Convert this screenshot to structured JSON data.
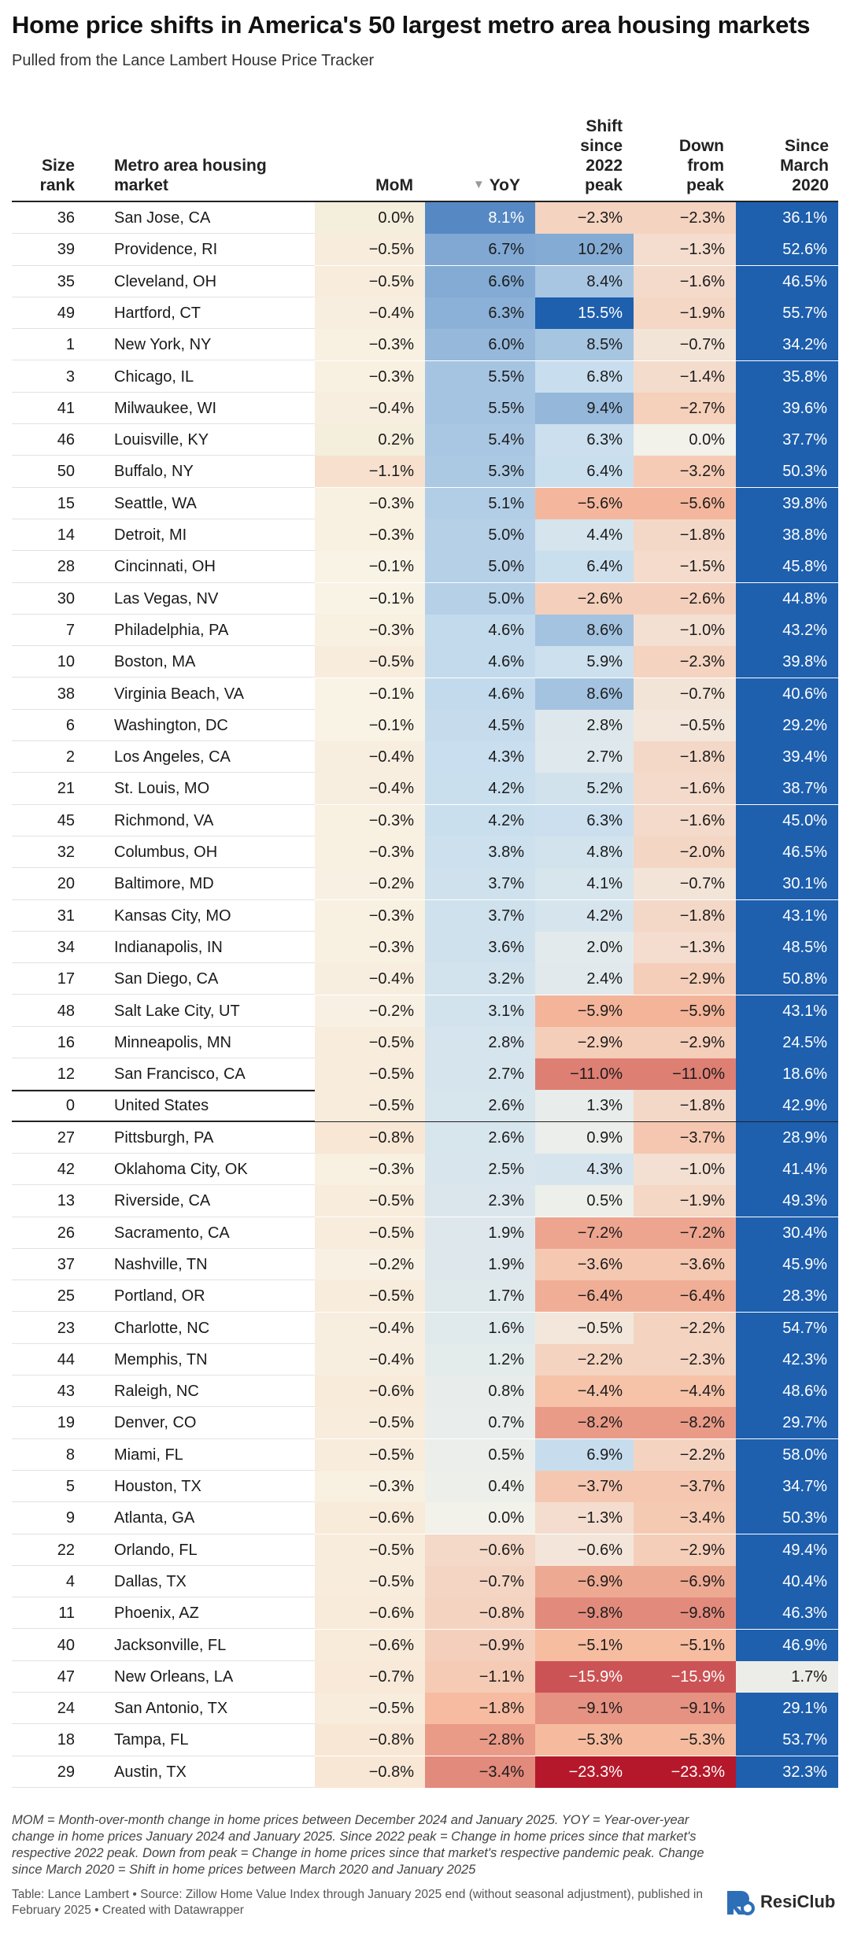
{
  "header": {
    "title": "Home price shifts in America's 50 largest metro area housing markets",
    "subtitle": "Pulled from the Lance Lambert House Price Tracker"
  },
  "columns": {
    "rank": "Size rank",
    "metro": "Metro area housing market",
    "mom": "MoM",
    "yoy_arrow": "▼",
    "yoy": "YoY",
    "shift": "Shift since 2022 peak",
    "down": "Down from peak",
    "since": "Since March 2020"
  },
  "chart_data": {
    "type": "table",
    "columns": [
      "Size rank",
      "Metro area housing market",
      "MoM",
      "YoY",
      "Shift since 2022 peak",
      "Down from peak",
      "Since March 2020"
    ],
    "sorted_by": "YoY",
    "sort_direction": "descending",
    "rows": [
      {
        "rank": 36,
        "metro": "San Jose, CA",
        "mom": 0.0,
        "yoy": 8.1,
        "shift": -2.3,
        "down": -2.3,
        "since": 36.1
      },
      {
        "rank": 39,
        "metro": "Providence, RI",
        "mom": -0.5,
        "yoy": 6.7,
        "shift": 10.2,
        "down": -1.3,
        "since": 52.6
      },
      {
        "rank": 35,
        "metro": "Cleveland, OH",
        "mom": -0.5,
        "yoy": 6.6,
        "shift": 8.4,
        "down": -1.6,
        "since": 46.5
      },
      {
        "rank": 49,
        "metro": "Hartford, CT",
        "mom": -0.4,
        "yoy": 6.3,
        "shift": 15.5,
        "down": -1.9,
        "since": 55.7
      },
      {
        "rank": 1,
        "metro": "New York, NY",
        "mom": -0.3,
        "yoy": 6.0,
        "shift": 8.5,
        "down": -0.7,
        "since": 34.2
      },
      {
        "rank": 3,
        "metro": "Chicago, IL",
        "mom": -0.3,
        "yoy": 5.5,
        "shift": 6.8,
        "down": -1.4,
        "since": 35.8
      },
      {
        "rank": 41,
        "metro": "Milwaukee, WI",
        "mom": -0.4,
        "yoy": 5.5,
        "shift": 9.4,
        "down": -2.7,
        "since": 39.6
      },
      {
        "rank": 46,
        "metro": "Louisville, KY",
        "mom": 0.2,
        "yoy": 5.4,
        "shift": 6.3,
        "down": 0.0,
        "since": 37.7
      },
      {
        "rank": 50,
        "metro": "Buffalo, NY",
        "mom": -1.1,
        "yoy": 5.3,
        "shift": 6.4,
        "down": -3.2,
        "since": 50.3
      },
      {
        "rank": 15,
        "metro": "Seattle, WA",
        "mom": -0.3,
        "yoy": 5.1,
        "shift": -5.6,
        "down": -5.6,
        "since": 39.8
      },
      {
        "rank": 14,
        "metro": "Detroit, MI",
        "mom": -0.3,
        "yoy": 5.0,
        "shift": 4.4,
        "down": -1.8,
        "since": 38.8
      },
      {
        "rank": 28,
        "metro": "Cincinnati, OH",
        "mom": -0.1,
        "yoy": 5.0,
        "shift": 6.4,
        "down": -1.5,
        "since": 45.8
      },
      {
        "rank": 30,
        "metro": "Las Vegas, NV",
        "mom": -0.1,
        "yoy": 5.0,
        "shift": -2.6,
        "down": -2.6,
        "since": 44.8
      },
      {
        "rank": 7,
        "metro": "Philadelphia, PA",
        "mom": -0.3,
        "yoy": 4.6,
        "shift": 8.6,
        "down": -1.0,
        "since": 43.2
      },
      {
        "rank": 10,
        "metro": "Boston, MA",
        "mom": -0.5,
        "yoy": 4.6,
        "shift": 5.9,
        "down": -2.3,
        "since": 39.8
      },
      {
        "rank": 38,
        "metro": "Virginia Beach, VA",
        "mom": -0.1,
        "yoy": 4.6,
        "shift": 8.6,
        "down": -0.7,
        "since": 40.6
      },
      {
        "rank": 6,
        "metro": "Washington, DC",
        "mom": -0.1,
        "yoy": 4.5,
        "shift": 2.8,
        "down": -0.5,
        "since": 29.2
      },
      {
        "rank": 2,
        "metro": "Los Angeles, CA",
        "mom": -0.4,
        "yoy": 4.3,
        "shift": 2.7,
        "down": -1.8,
        "since": 39.4
      },
      {
        "rank": 21,
        "metro": "St. Louis, MO",
        "mom": -0.4,
        "yoy": 4.2,
        "shift": 5.2,
        "down": -1.6,
        "since": 38.7
      },
      {
        "rank": 45,
        "metro": "Richmond, VA",
        "mom": -0.3,
        "yoy": 4.2,
        "shift": 6.3,
        "down": -1.6,
        "since": 45.0
      },
      {
        "rank": 32,
        "metro": "Columbus, OH",
        "mom": -0.3,
        "yoy": 3.8,
        "shift": 4.8,
        "down": -2.0,
        "since": 46.5
      },
      {
        "rank": 20,
        "metro": "Baltimore, MD",
        "mom": -0.2,
        "yoy": 3.7,
        "shift": 4.1,
        "down": -0.7,
        "since": 30.1
      },
      {
        "rank": 31,
        "metro": "Kansas City, MO",
        "mom": -0.3,
        "yoy": 3.7,
        "shift": 4.2,
        "down": -1.8,
        "since": 43.1
      },
      {
        "rank": 34,
        "metro": "Indianapolis, IN",
        "mom": -0.3,
        "yoy": 3.6,
        "shift": 2.0,
        "down": -1.3,
        "since": 48.5
      },
      {
        "rank": 17,
        "metro": "San Diego, CA",
        "mom": -0.4,
        "yoy": 3.2,
        "shift": 2.4,
        "down": -2.9,
        "since": 50.8
      },
      {
        "rank": 48,
        "metro": "Salt Lake City, UT",
        "mom": -0.2,
        "yoy": 3.1,
        "shift": -5.9,
        "down": -5.9,
        "since": 43.1
      },
      {
        "rank": 16,
        "metro": "Minneapolis, MN",
        "mom": -0.5,
        "yoy": 2.8,
        "shift": -2.9,
        "down": -2.9,
        "since": 24.5
      },
      {
        "rank": 12,
        "metro": "San Francisco, CA",
        "mom": -0.5,
        "yoy": 2.7,
        "shift": -11.0,
        "down": -11.0,
        "since": 18.6
      },
      {
        "rank": 0,
        "metro": "United States",
        "mom": -0.5,
        "yoy": 2.6,
        "shift": 1.3,
        "down": -1.8,
        "since": 42.9,
        "highlight": true
      },
      {
        "rank": 27,
        "metro": "Pittsburgh, PA",
        "mom": -0.8,
        "yoy": 2.6,
        "shift": 0.9,
        "down": -3.7,
        "since": 28.9
      },
      {
        "rank": 42,
        "metro": "Oklahoma City, OK",
        "mom": -0.3,
        "yoy": 2.5,
        "shift": 4.3,
        "down": -1.0,
        "since": 41.4
      },
      {
        "rank": 13,
        "metro": "Riverside, CA",
        "mom": -0.5,
        "yoy": 2.3,
        "shift": 0.5,
        "down": -1.9,
        "since": 49.3
      },
      {
        "rank": 26,
        "metro": "Sacramento, CA",
        "mom": -0.5,
        "yoy": 1.9,
        "shift": -7.2,
        "down": -7.2,
        "since": 30.4
      },
      {
        "rank": 37,
        "metro": "Nashville, TN",
        "mom": -0.2,
        "yoy": 1.9,
        "shift": -3.6,
        "down": -3.6,
        "since": 45.9
      },
      {
        "rank": 25,
        "metro": "Portland, OR",
        "mom": -0.5,
        "yoy": 1.7,
        "shift": -6.4,
        "down": -6.4,
        "since": 28.3
      },
      {
        "rank": 23,
        "metro": "Charlotte, NC",
        "mom": -0.4,
        "yoy": 1.6,
        "shift": -0.5,
        "down": -2.2,
        "since": 54.7
      },
      {
        "rank": 44,
        "metro": "Memphis, TN",
        "mom": -0.4,
        "yoy": 1.2,
        "shift": -2.2,
        "down": -2.3,
        "since": 42.3
      },
      {
        "rank": 43,
        "metro": "Raleigh, NC",
        "mom": -0.6,
        "yoy": 0.8,
        "shift": -4.4,
        "down": -4.4,
        "since": 48.6
      },
      {
        "rank": 19,
        "metro": "Denver, CO",
        "mom": -0.5,
        "yoy": 0.7,
        "shift": -8.2,
        "down": -8.2,
        "since": 29.7
      },
      {
        "rank": 8,
        "metro": "Miami, FL",
        "mom": -0.5,
        "yoy": 0.5,
        "shift": 6.9,
        "down": -2.2,
        "since": 58.0
      },
      {
        "rank": 5,
        "metro": "Houston, TX",
        "mom": -0.3,
        "yoy": 0.4,
        "shift": -3.7,
        "down": -3.7,
        "since": 34.7
      },
      {
        "rank": 9,
        "metro": "Atlanta, GA",
        "mom": -0.6,
        "yoy": 0.0,
        "shift": -1.3,
        "down": -3.4,
        "since": 50.3
      },
      {
        "rank": 22,
        "metro": "Orlando, FL",
        "mom": -0.5,
        "yoy": -0.6,
        "shift": -0.6,
        "down": -2.9,
        "since": 49.4
      },
      {
        "rank": 4,
        "metro": "Dallas, TX",
        "mom": -0.5,
        "yoy": -0.7,
        "shift": -6.9,
        "down": -6.9,
        "since": 40.4
      },
      {
        "rank": 11,
        "metro": "Phoenix, AZ",
        "mom": -0.6,
        "yoy": -0.8,
        "shift": -9.8,
        "down": -9.8,
        "since": 46.3
      },
      {
        "rank": 40,
        "metro": "Jacksonville, FL",
        "mom": -0.6,
        "yoy": -0.9,
        "shift": -5.1,
        "down": -5.1,
        "since": 46.9
      },
      {
        "rank": 47,
        "metro": "New Orleans, LA",
        "mom": -0.7,
        "yoy": -1.1,
        "shift": -15.9,
        "down": -15.9,
        "since": 1.7
      },
      {
        "rank": 24,
        "metro": "San Antonio, TX",
        "mom": -0.5,
        "yoy": -1.8,
        "shift": -9.1,
        "down": -9.1,
        "since": 29.1
      },
      {
        "rank": 18,
        "metro": "Tampa, FL",
        "mom": -0.8,
        "yoy": -2.8,
        "shift": -5.3,
        "down": -5.3,
        "since": 53.7
      },
      {
        "rank": 29,
        "metro": "Austin, TX",
        "mom": -0.8,
        "yoy": -3.4,
        "shift": -23.3,
        "down": -23.3,
        "since": 32.3
      }
    ]
  },
  "colors": {
    "positive_blue": "#1e5fae",
    "negative_red": "#b5182a",
    "neutral": "#f2f1ea",
    "mom_tint": "#f7f3e4"
  },
  "footer": {
    "footnote": "MOM = Month-over-month change in home prices between December 2024 and January 2025. YOY = Year-over-year change in home prices January 2024 and January 2025. Since 2022 peak = Change in home prices since that market's respective 2022 peak. Down from peak = Change in home prices since that market's respective pandemic peak. Change since March 2020 = Shift in home prices between March 2020 and January 2025",
    "credit": "Table: Lance Lambert • Source: Zillow Home Value Index through January 2025 end (without seasonal adjustment), published in February 2025 • Created with Datawrapper",
    "logo_text": "ResiClub",
    "logo_icon": "resiclub-logo-icon"
  }
}
